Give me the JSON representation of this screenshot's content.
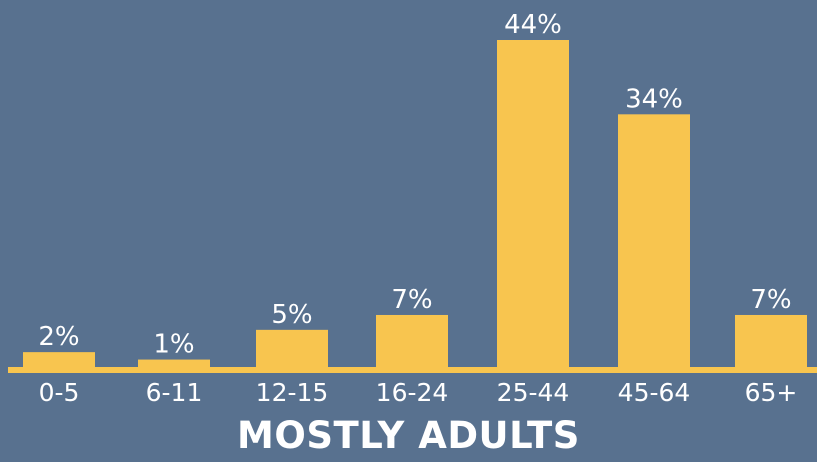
{
  "chart_data": {
    "type": "bar",
    "title": "MOSTLY ADULTS",
    "categories": [
      "0-5",
      "6-11",
      "12-15",
      "16-24",
      "25-44",
      "45-64",
      "65+"
    ],
    "values": [
      2,
      1,
      5,
      7,
      44,
      34,
      7
    ],
    "value_labels": [
      "2%",
      "1%",
      "5%",
      "7%",
      "44%",
      "34%",
      "7%"
    ],
    "xlabel": "",
    "ylabel": "",
    "ylim": [
      0,
      44
    ],
    "grid": false,
    "legend": "none",
    "colors": {
      "background": "#58718f",
      "bar": "#f8c54f",
      "text": "#ffffff"
    }
  }
}
